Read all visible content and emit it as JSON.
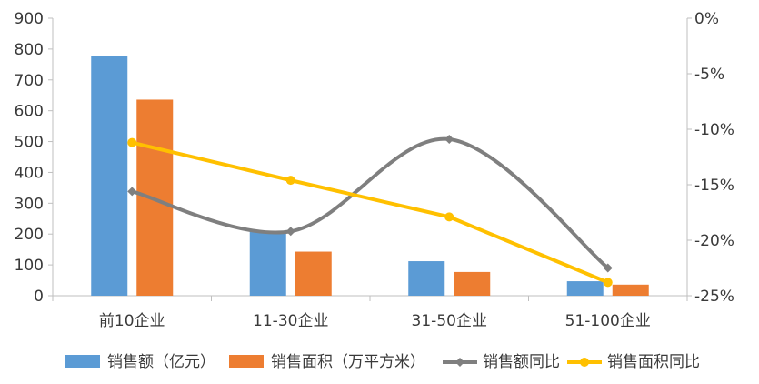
{
  "chart_data": {
    "type": "bar",
    "categories": [
      "前10企业",
      "11-30企业",
      "31-50企业",
      "51-100企业"
    ],
    "bar_series": [
      {
        "name": "销售额（亿元）",
        "values": [
          778,
          210,
          112,
          47
        ],
        "color": "#5b9bd5"
      },
      {
        "name": "销售面积（万平方米）",
        "values": [
          636,
          143,
          77,
          36
        ],
        "color": "#ed7d31"
      }
    ],
    "line_series": [
      {
        "name": "销售额同比",
        "values": [
          -15.6,
          -19.2,
          -10.9,
          -22.5
        ],
        "color": "#7f7f7f",
        "marker": "diamond",
        "smooth": true
      },
      {
        "name": "销售面积同比",
        "values": [
          -11.2,
          -14.6,
          -17.9,
          -23.8
        ],
        "color": "#ffc000",
        "marker": "circle",
        "smooth": false
      }
    ],
    "y_left": {
      "min": 0,
      "max": 900,
      "ticks": [
        "0",
        "100",
        "200",
        "300",
        "400",
        "500",
        "600",
        "700",
        "800",
        "900"
      ]
    },
    "y_right": {
      "min": -25,
      "max": 0,
      "ticks": [
        "-25%",
        "-20%",
        "-15%",
        "-10%",
        "-5%",
        "0%"
      ]
    },
    "grid": false,
    "legend_position": "bottom"
  }
}
